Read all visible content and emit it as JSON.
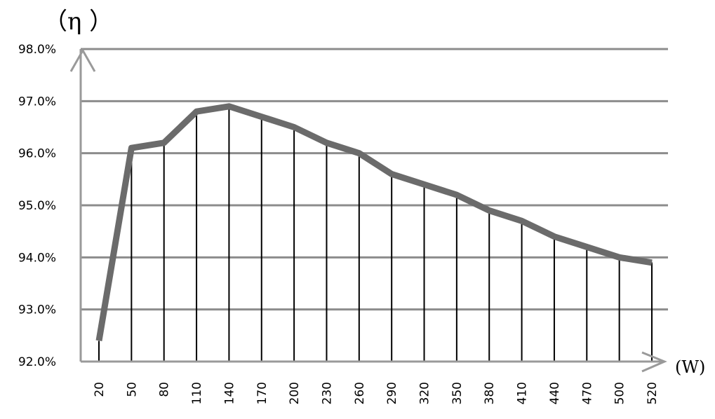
{
  "chart_data": {
    "type": "line",
    "x": [
      20,
      50,
      80,
      110,
      140,
      170,
      200,
      230,
      260,
      290,
      320,
      350,
      380,
      410,
      440,
      470,
      500,
      520
    ],
    "categories": [
      "20",
      "50",
      "80",
      "110",
      "140",
      "170",
      "200",
      "230",
      "260",
      "290",
      "320",
      "350",
      "380",
      "410",
      "440",
      "470",
      "500",
      "520"
    ],
    "series": [
      {
        "values": [
          92.4,
          96.1,
          96.2,
          96.8,
          96.9,
          96.7,
          96.5,
          96.2,
          96.0,
          95.6,
          95.4,
          95.2,
          94.9,
          94.7,
          94.4,
          94.2,
          94.0,
          93.9
        ]
      }
    ],
    "ylabel": "（η ）",
    "xlabel": "(W)",
    "ylim": [
      92.0,
      98.0
    ],
    "yticks": [
      "92.0%",
      "93.0%",
      "94.0%",
      "95.0%",
      "96.0%",
      "97.0%",
      "98.0%"
    ],
    "grid": true,
    "drop_lines": true,
    "colors": {
      "line": "#6b6b6b",
      "grid": "#8c8c8c",
      "axis": "#9a9a9a",
      "drop": "#000000"
    }
  }
}
